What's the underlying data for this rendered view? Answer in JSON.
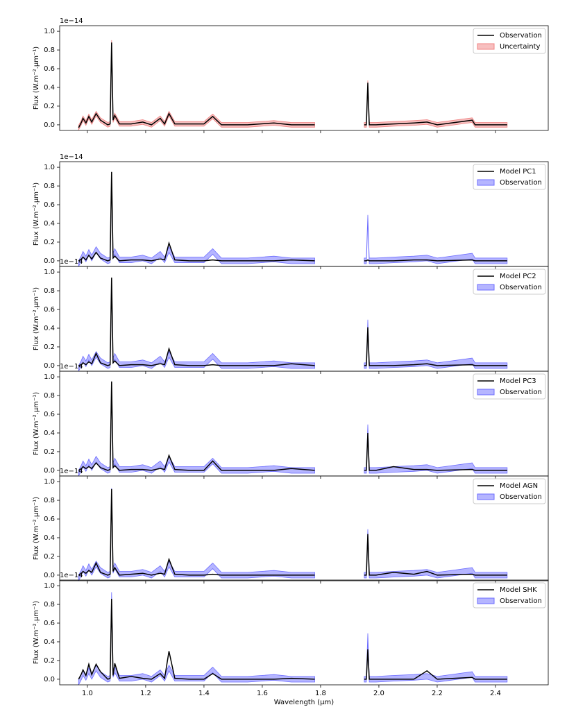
{
  "chart_data": [
    {
      "type": "line",
      "offset_label": "1e−14",
      "ylabel": "Flux (W.m⁻².μm⁻¹)",
      "legend": "upper right",
      "xtick_labels": false,
      "xlim": [
        0.905,
        2.581
      ],
      "ylim": [
        -0.06,
        1.06
      ],
      "xticks": [
        {
          "value": 1.0,
          "label": "1.0"
        },
        1.2,
        1.4,
        1.6,
        1.8,
        {
          "value": 2.0,
          "label": "2.0"
        },
        2.2,
        2.4
      ],
      "yticks": [
        {
          "value": 0,
          "label": "0.0"
        },
        0.2,
        0.4,
        0.6,
        0.8,
        {
          "value": 1,
          "label": "1.0"
        }
      ],
      "x": [
        0.97,
        0.98,
        0.985,
        0.995,
        1.005,
        1.015,
        1.03,
        1.045,
        1.07,
        1.078,
        1.083,
        1.088,
        1.094,
        1.11,
        1.15,
        1.19,
        1.22,
        1.25,
        1.265,
        1.28,
        1.3,
        1.35,
        1.4,
        1.43,
        1.46,
        1.55,
        1.64,
        1.7,
        1.78,
        1.865,
        1.95,
        1.957,
        1.962,
        1.967,
        1.99,
        2.05,
        2.12,
        2.165,
        2.2,
        2.32,
        2.33,
        2.44
      ],
      "series": [
        {
          "name": "Observation",
          "kind": "line",
          "color": "#000000",
          "values": [
            -0.03,
            0.03,
            0.07,
            0.02,
            0.09,
            0.03,
            0.12,
            0.05,
            0.0,
            0.01,
            0.88,
            0.05,
            0.1,
            0.01,
            0.01,
            0.03,
            0.0,
            0.07,
            0.01,
            0.12,
            0.01,
            0.01,
            0.01,
            0.09,
            0.0,
            0.0,
            0.02,
            0.0,
            0.0,
            null,
            0.0,
            0.0,
            0.45,
            0.0,
            0.0,
            0.01,
            0.02,
            0.03,
            0.0,
            0.05,
            0.0,
            0.0
          ]
        },
        {
          "name": "Uncertainty",
          "kind": "band",
          "color": "#f08080",
          "error": 0.025,
          "values": [
            -0.03,
            0.03,
            0.07,
            0.02,
            0.09,
            0.03,
            0.12,
            0.05,
            0.0,
            0.01,
            0.88,
            0.05,
            0.1,
            0.01,
            0.01,
            0.03,
            0.0,
            0.07,
            0.01,
            0.12,
            0.01,
            0.01,
            0.01,
            0.09,
            0.0,
            0.0,
            0.02,
            0.0,
            0.0,
            null,
            0.0,
            0.0,
            0.45,
            0.0,
            0.0,
            0.01,
            0.02,
            0.03,
            0.0,
            0.05,
            0.0,
            0.0
          ]
        }
      ]
    },
    {
      "type": "line",
      "offset_label": "1e−14",
      "ylabel": "Flux (W.m⁻².μm⁻¹)",
      "legend": "upper right",
      "xtick_labels": false,
      "xlim": [
        0.905,
        2.581
      ],
      "ylim": [
        -0.06,
        1.06
      ],
      "xticks": [
        {
          "value": 1.0,
          "label": "1.0"
        },
        1.2,
        1.4,
        1.6,
        1.8,
        {
          "value": 2.0,
          "label": "2.0"
        },
        2.2,
        2.4
      ],
      "yticks": [
        {
          "value": 0,
          "label": "0.0"
        },
        0.2,
        0.4,
        0.6,
        0.8,
        {
          "value": 1,
          "label": "1.0"
        }
      ],
      "x": [
        0.97,
        0.98,
        0.985,
        0.995,
        1.005,
        1.015,
        1.03,
        1.045,
        1.07,
        1.078,
        1.083,
        1.088,
        1.094,
        1.11,
        1.15,
        1.19,
        1.22,
        1.25,
        1.265,
        1.28,
        1.3,
        1.35,
        1.4,
        1.43,
        1.46,
        1.55,
        1.64,
        1.7,
        1.78,
        1.865,
        1.95,
        1.957,
        1.962,
        1.967,
        1.99,
        2.05,
        2.12,
        2.165,
        2.2,
        2.32,
        2.33,
        2.44
      ],
      "series": [
        {
          "name": "Model PC1",
          "kind": "line",
          "color": "#000000",
          "values": [
            0.0,
            0.02,
            0.04,
            0.01,
            0.06,
            0.02,
            0.09,
            0.03,
            0.0,
            0.01,
            0.95,
            0.03,
            0.05,
            0.0,
            0.01,
            0.01,
            0.0,
            0.02,
            0.01,
            0.19,
            0.01,
            0.0,
            0.0,
            0.01,
            0.0,
            0.0,
            0.0,
            0.01,
            0.0,
            null,
            0.0,
            0.0,
            0.01,
            0.0,
            0.0,
            0.0,
            0.01,
            0.01,
            0.0,
            0.01,
            0.0,
            0.0
          ]
        },
        {
          "name": "Observation",
          "kind": "band",
          "color": "#6b6bff",
          "error": 0.03,
          "values": [
            -0.03,
            0.03,
            0.07,
            0.02,
            0.09,
            0.03,
            0.12,
            0.05,
            0.0,
            0.01,
            0.9,
            0.05,
            0.1,
            0.01,
            0.01,
            0.03,
            0.0,
            0.07,
            0.01,
            0.12,
            0.01,
            0.01,
            0.01,
            0.1,
            0.0,
            0.0,
            0.02,
            0.0,
            0.0,
            null,
            0.0,
            0.0,
            0.46,
            0.0,
            0.0,
            0.01,
            0.02,
            0.03,
            0.0,
            0.05,
            0.0,
            0.0
          ]
        }
      ]
    },
    {
      "type": "line",
      "offset_label": "1e−14",
      "ylabel": "Flux (W.m⁻².μm⁻¹)",
      "legend": "upper right",
      "xtick_labels": false,
      "xlim": [
        0.905,
        2.581
      ],
      "ylim": [
        -0.06,
        1.06
      ],
      "xticks": [
        {
          "value": 1.0,
          "label": "1.0"
        },
        1.2,
        1.4,
        1.6,
        1.8,
        {
          "value": 2.0,
          "label": "2.0"
        },
        2.2,
        2.4
      ],
      "yticks": [
        {
          "value": 0,
          "label": "0.0"
        },
        0.2,
        0.4,
        0.6,
        0.8,
        {
          "value": 1,
          "label": "1.0"
        }
      ],
      "x": [
        0.97,
        0.98,
        0.985,
        0.995,
        1.005,
        1.015,
        1.03,
        1.045,
        1.07,
        1.078,
        1.083,
        1.088,
        1.094,
        1.11,
        1.15,
        1.19,
        1.22,
        1.25,
        1.265,
        1.28,
        1.3,
        1.35,
        1.4,
        1.43,
        1.46,
        1.55,
        1.64,
        1.7,
        1.78,
        1.865,
        1.95,
        1.957,
        1.962,
        1.967,
        1.99,
        2.05,
        2.12,
        2.165,
        2.2,
        2.32,
        2.33,
        2.44
      ],
      "series": [
        {
          "name": "Model PC2",
          "kind": "line",
          "color": "#000000",
          "values": [
            0.0,
            0.01,
            0.03,
            0.01,
            0.04,
            0.02,
            0.13,
            0.03,
            0.0,
            0.01,
            0.94,
            0.03,
            0.05,
            0.0,
            0.01,
            0.01,
            0.0,
            0.02,
            0.01,
            0.18,
            0.01,
            0.0,
            0.0,
            0.01,
            0.0,
            0.0,
            0.0,
            0.02,
            0.0,
            null,
            0.0,
            0.0,
            0.41,
            0.0,
            0.0,
            0.0,
            0.01,
            0.02,
            0.0,
            0.01,
            0.0,
            0.0
          ]
        },
        {
          "name": "Observation",
          "kind": "band",
          "color": "#6b6bff",
          "error": 0.03,
          "values": [
            -0.03,
            0.03,
            0.07,
            0.02,
            0.09,
            0.03,
            0.12,
            0.05,
            0.0,
            0.01,
            0.9,
            0.05,
            0.1,
            0.01,
            0.01,
            0.03,
            0.0,
            0.07,
            0.01,
            0.12,
            0.01,
            0.01,
            0.01,
            0.1,
            0.0,
            0.0,
            0.02,
            0.0,
            0.0,
            null,
            0.0,
            0.0,
            0.46,
            0.0,
            0.0,
            0.01,
            0.02,
            0.03,
            0.0,
            0.05,
            0.0,
            0.0
          ]
        }
      ]
    },
    {
      "type": "line",
      "offset_label": "1e−14",
      "ylabel": "Flux (W.m⁻².μm⁻¹)",
      "legend": "upper right",
      "xtick_labels": false,
      "xlim": [
        0.905,
        2.581
      ],
      "ylim": [
        -0.06,
        1.06
      ],
      "xticks": [
        {
          "value": 1.0,
          "label": "1.0"
        },
        1.2,
        1.4,
        1.6,
        1.8,
        {
          "value": 2.0,
          "label": "2.0"
        },
        2.2,
        2.4
      ],
      "yticks": [
        {
          "value": 0,
          "label": "0.0"
        },
        0.2,
        0.4,
        0.6,
        0.8,
        {
          "value": 1,
          "label": "1.0"
        }
      ],
      "x": [
        0.97,
        0.98,
        0.985,
        0.995,
        1.005,
        1.015,
        1.03,
        1.045,
        1.07,
        1.078,
        1.083,
        1.088,
        1.094,
        1.11,
        1.15,
        1.19,
        1.22,
        1.25,
        1.265,
        1.28,
        1.3,
        1.35,
        1.4,
        1.43,
        1.46,
        1.55,
        1.64,
        1.7,
        1.78,
        1.865,
        1.95,
        1.957,
        1.962,
        1.967,
        1.99,
        2.05,
        2.12,
        2.165,
        2.2,
        2.32,
        2.33,
        2.44
      ],
      "series": [
        {
          "name": "Model PC3",
          "kind": "line",
          "color": "#000000",
          "values": [
            0.0,
            0.02,
            0.04,
            0.02,
            0.04,
            0.02,
            0.08,
            0.03,
            0.0,
            0.01,
            0.95,
            0.03,
            0.05,
            0.0,
            0.01,
            0.01,
            0.0,
            0.02,
            0.01,
            0.16,
            0.01,
            0.0,
            0.0,
            0.1,
            0.0,
            0.0,
            0.0,
            0.02,
            0.0,
            null,
            0.0,
            0.0,
            0.4,
            0.0,
            0.0,
            0.04,
            0.01,
            0.01,
            0.0,
            0.01,
            0.0,
            0.0
          ]
        },
        {
          "name": "Observation",
          "kind": "band",
          "color": "#6b6bff",
          "error": 0.03,
          "values": [
            -0.03,
            0.03,
            0.07,
            0.02,
            0.09,
            0.03,
            0.12,
            0.05,
            0.0,
            0.01,
            0.9,
            0.05,
            0.1,
            0.01,
            0.01,
            0.03,
            0.0,
            0.07,
            0.01,
            0.12,
            0.01,
            0.01,
            0.01,
            0.1,
            0.0,
            0.0,
            0.02,
            0.0,
            0.0,
            null,
            0.0,
            0.0,
            0.46,
            0.0,
            0.0,
            0.01,
            0.02,
            0.03,
            0.0,
            0.05,
            0.0,
            0.0
          ]
        }
      ]
    },
    {
      "type": "line",
      "offset_label": "1e−14",
      "ylabel": "Flux (W.m⁻².μm⁻¹)",
      "legend": "upper right",
      "xtick_labels": false,
      "xlim": [
        0.905,
        2.581
      ],
      "ylim": [
        -0.06,
        1.06
      ],
      "xticks": [
        {
          "value": 1.0,
          "label": "1.0"
        },
        1.2,
        1.4,
        1.6,
        1.8,
        {
          "value": 2.0,
          "label": "2.0"
        },
        2.2,
        2.4
      ],
      "yticks": [
        {
          "value": 0,
          "label": "0.0"
        },
        0.2,
        0.4,
        0.6,
        0.8,
        {
          "value": 1,
          "label": "1.0"
        }
      ],
      "x": [
        0.97,
        0.98,
        0.985,
        0.995,
        1.005,
        1.015,
        1.03,
        1.045,
        1.07,
        1.078,
        1.083,
        1.088,
        1.094,
        1.11,
        1.15,
        1.19,
        1.22,
        1.25,
        1.265,
        1.28,
        1.3,
        1.35,
        1.4,
        1.43,
        1.46,
        1.55,
        1.64,
        1.7,
        1.78,
        1.865,
        1.95,
        1.957,
        1.962,
        1.967,
        1.99,
        2.05,
        2.12,
        2.165,
        2.2,
        2.32,
        2.33,
        2.44
      ],
      "series": [
        {
          "name": "Model AGN",
          "kind": "line",
          "color": "#000000",
          "values": [
            0.0,
            0.02,
            0.04,
            0.02,
            0.05,
            0.03,
            0.13,
            0.03,
            0.0,
            0.01,
            0.92,
            0.04,
            0.08,
            0.0,
            0.01,
            0.02,
            0.0,
            0.02,
            0.01,
            0.17,
            0.01,
            0.0,
            0.0,
            0.01,
            0.0,
            0.0,
            0.0,
            0.0,
            0.0,
            null,
            0.0,
            0.0,
            0.44,
            0.0,
            0.0,
            0.03,
            0.01,
            0.04,
            0.0,
            0.01,
            0.0,
            0.0
          ]
        },
        {
          "name": "Observation",
          "kind": "band",
          "color": "#6b6bff",
          "error": 0.03,
          "values": [
            -0.03,
            0.03,
            0.07,
            0.02,
            0.09,
            0.03,
            0.12,
            0.05,
            0.0,
            0.01,
            0.9,
            0.05,
            0.1,
            0.01,
            0.01,
            0.03,
            0.0,
            0.07,
            0.01,
            0.12,
            0.01,
            0.01,
            0.01,
            0.1,
            0.0,
            0.0,
            0.02,
            0.0,
            0.0,
            null,
            0.0,
            0.0,
            0.46,
            0.0,
            0.0,
            0.01,
            0.02,
            0.03,
            0.0,
            0.05,
            0.0,
            0.0
          ]
        }
      ]
    },
    {
      "type": "line",
      "offset_label": "1e−14",
      "ylabel": "Flux (W.m⁻².μm⁻¹)",
      "xlabel": "Wavelength (μm)",
      "legend": "upper right",
      "xtick_labels": true,
      "xlim": [
        0.905,
        2.581
      ],
      "ylim": [
        -0.06,
        1.06
      ],
      "xticks": [
        {
          "value": 1.0,
          "label": "1.0"
        },
        1.2,
        1.4,
        1.6,
        1.8,
        {
          "value": 2.0,
          "label": "2.0"
        },
        2.2,
        2.4
      ],
      "yticks": [
        {
          "value": 0,
          "label": "0.0"
        },
        0.2,
        0.4,
        0.6,
        0.8,
        {
          "value": 1,
          "label": "1.0"
        }
      ],
      "x": [
        0.97,
        0.98,
        0.985,
        0.995,
        1.005,
        1.015,
        1.03,
        1.045,
        1.07,
        1.078,
        1.083,
        1.088,
        1.094,
        1.11,
        1.15,
        1.19,
        1.22,
        1.25,
        1.265,
        1.28,
        1.3,
        1.35,
        1.4,
        1.43,
        1.46,
        1.55,
        1.64,
        1.7,
        1.78,
        1.865,
        1.95,
        1.957,
        1.962,
        1.967,
        1.99,
        2.05,
        2.12,
        2.165,
        2.2,
        2.32,
        2.33,
        2.44
      ],
      "series": [
        {
          "name": "Model SHK",
          "kind": "line",
          "color": "#000000",
          "values": [
            0.0,
            0.06,
            0.1,
            0.04,
            0.16,
            0.05,
            0.16,
            0.08,
            0.0,
            0.01,
            0.86,
            0.04,
            0.17,
            0.01,
            0.03,
            0.01,
            0.0,
            0.06,
            0.01,
            0.3,
            0.01,
            0.0,
            0.0,
            0.06,
            0.0,
            0.0,
            0.0,
            0.01,
            0.0,
            null,
            0.0,
            0.0,
            0.32,
            0.0,
            0.0,
            0.0,
            0.0,
            0.09,
            0.0,
            0.02,
            0.0,
            0.0
          ]
        },
        {
          "name": "Observation",
          "kind": "band",
          "color": "#6b6bff",
          "error": 0.03,
          "values": [
            -0.03,
            0.03,
            0.07,
            0.02,
            0.09,
            0.03,
            0.12,
            0.05,
            0.0,
            0.01,
            0.9,
            0.05,
            0.1,
            0.01,
            0.01,
            0.03,
            0.0,
            0.07,
            0.01,
            0.12,
            0.01,
            0.01,
            0.01,
            0.1,
            0.0,
            0.0,
            0.02,
            0.0,
            0.0,
            null,
            0.0,
            0.0,
            0.46,
            0.0,
            0.0,
            0.01,
            0.02,
            0.03,
            0.0,
            0.05,
            0.0,
            0.0
          ]
        }
      ]
    }
  ]
}
